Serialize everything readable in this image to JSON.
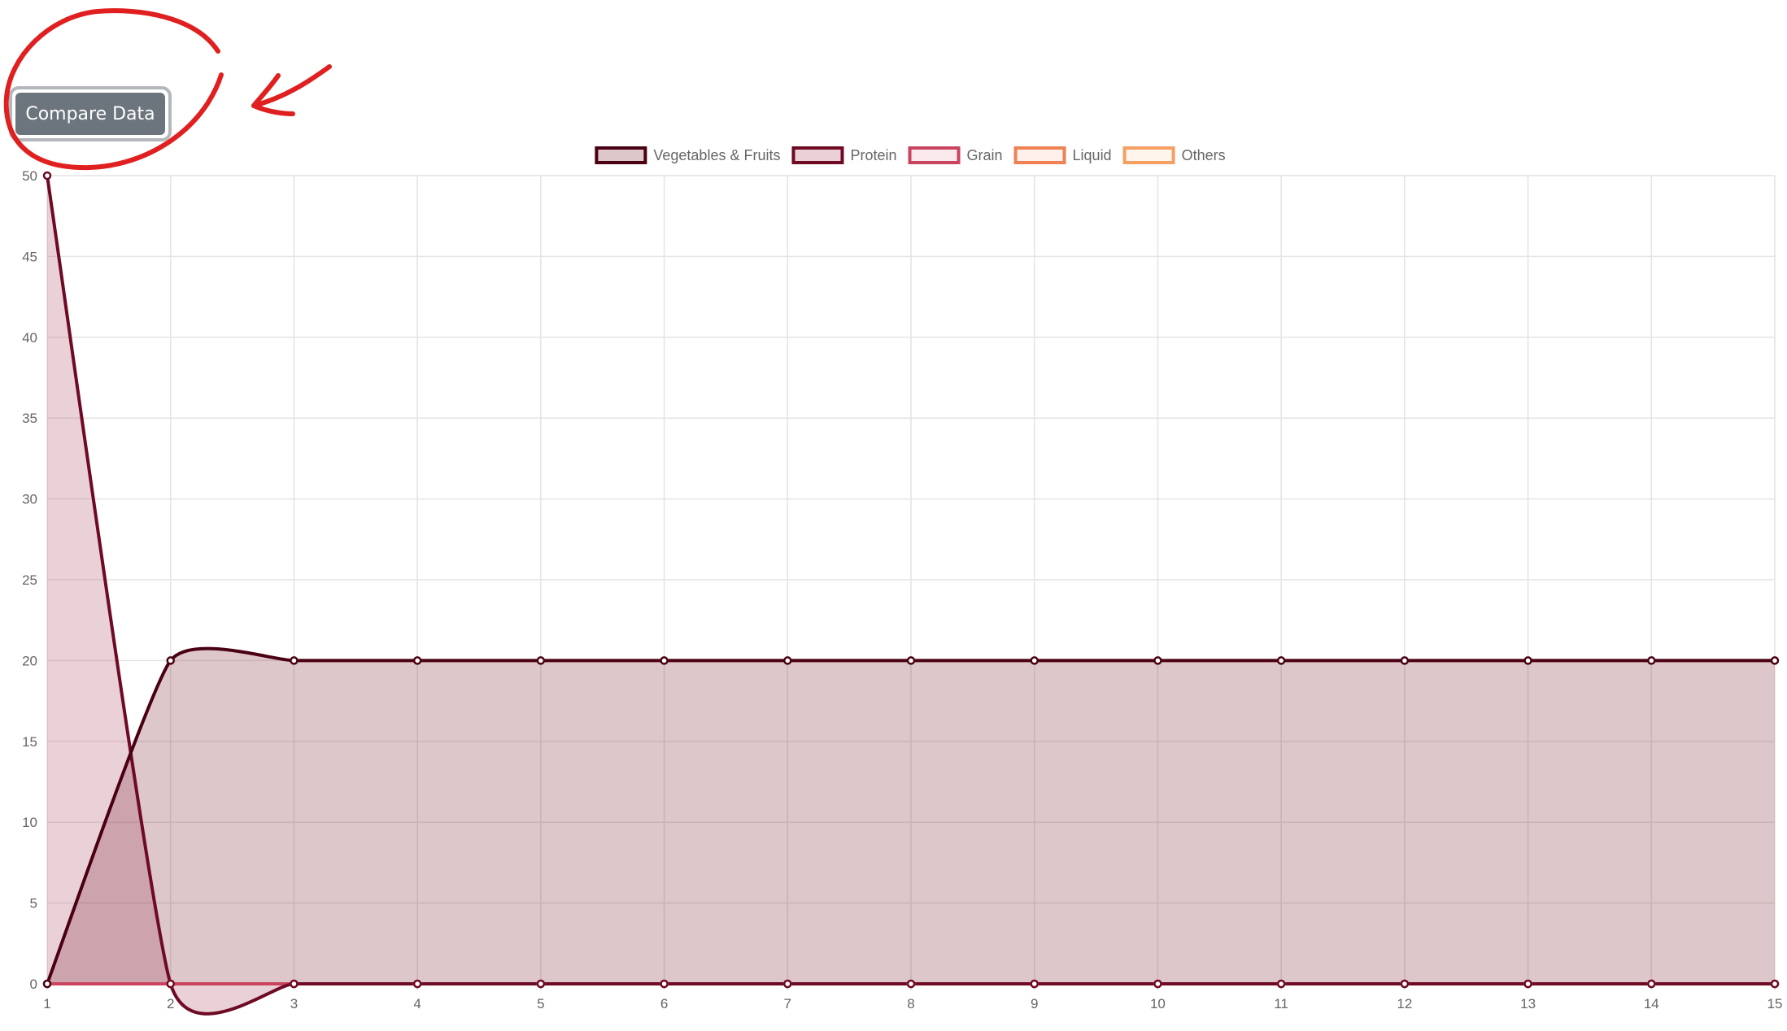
{
  "compare_button": {
    "label": "Compare Data"
  },
  "annotation": {
    "color": "#e02020"
  },
  "chart_data": {
    "type": "area",
    "x": [
      1,
      2,
      3,
      4,
      5,
      6,
      7,
      8,
      9,
      10,
      11,
      12,
      13,
      14,
      15
    ],
    "ylim": [
      0,
      50
    ],
    "yticks": [
      0,
      5,
      10,
      15,
      20,
      25,
      30,
      35,
      40,
      45,
      50
    ],
    "grid": true,
    "legend_position": "top",
    "series": [
      {
        "name": "Vegetables & Fruits",
        "color": "#4a0012",
        "fill": "rgba(120,30,45,0.25)",
        "values": [
          0,
          20,
          20,
          20,
          20,
          20,
          20,
          20,
          20,
          20,
          20,
          20,
          20,
          20,
          20
        ]
      },
      {
        "name": "Protein",
        "color": "#6e0a24",
        "fill": "rgba(170,70,100,0.25)",
        "values": [
          50,
          0,
          0,
          0,
          0,
          0,
          0,
          0,
          0,
          0,
          0,
          0,
          0,
          0,
          0
        ]
      },
      {
        "name": "Grain",
        "color": "#c9455f",
        "fill": "rgba(240,170,185,0.25)",
        "values": [
          0,
          0,
          0,
          0,
          0,
          0,
          0,
          0,
          0,
          0,
          0,
          0,
          0,
          0,
          0
        ]
      },
      {
        "name": "Liquid",
        "color": "#ef8155",
        "fill": "rgba(252,210,190,0.3)",
        "values": [
          0,
          0,
          0,
          0,
          0,
          0,
          0,
          0,
          0,
          0,
          0,
          0,
          0,
          0,
          0
        ]
      },
      {
        "name": "Others",
        "color": "#f4a065",
        "fill": "rgba(253,225,195,0.3)",
        "values": [
          0,
          0,
          0,
          0,
          0,
          0,
          0,
          0,
          0,
          0,
          0,
          0,
          0,
          0,
          0
        ]
      }
    ]
  }
}
